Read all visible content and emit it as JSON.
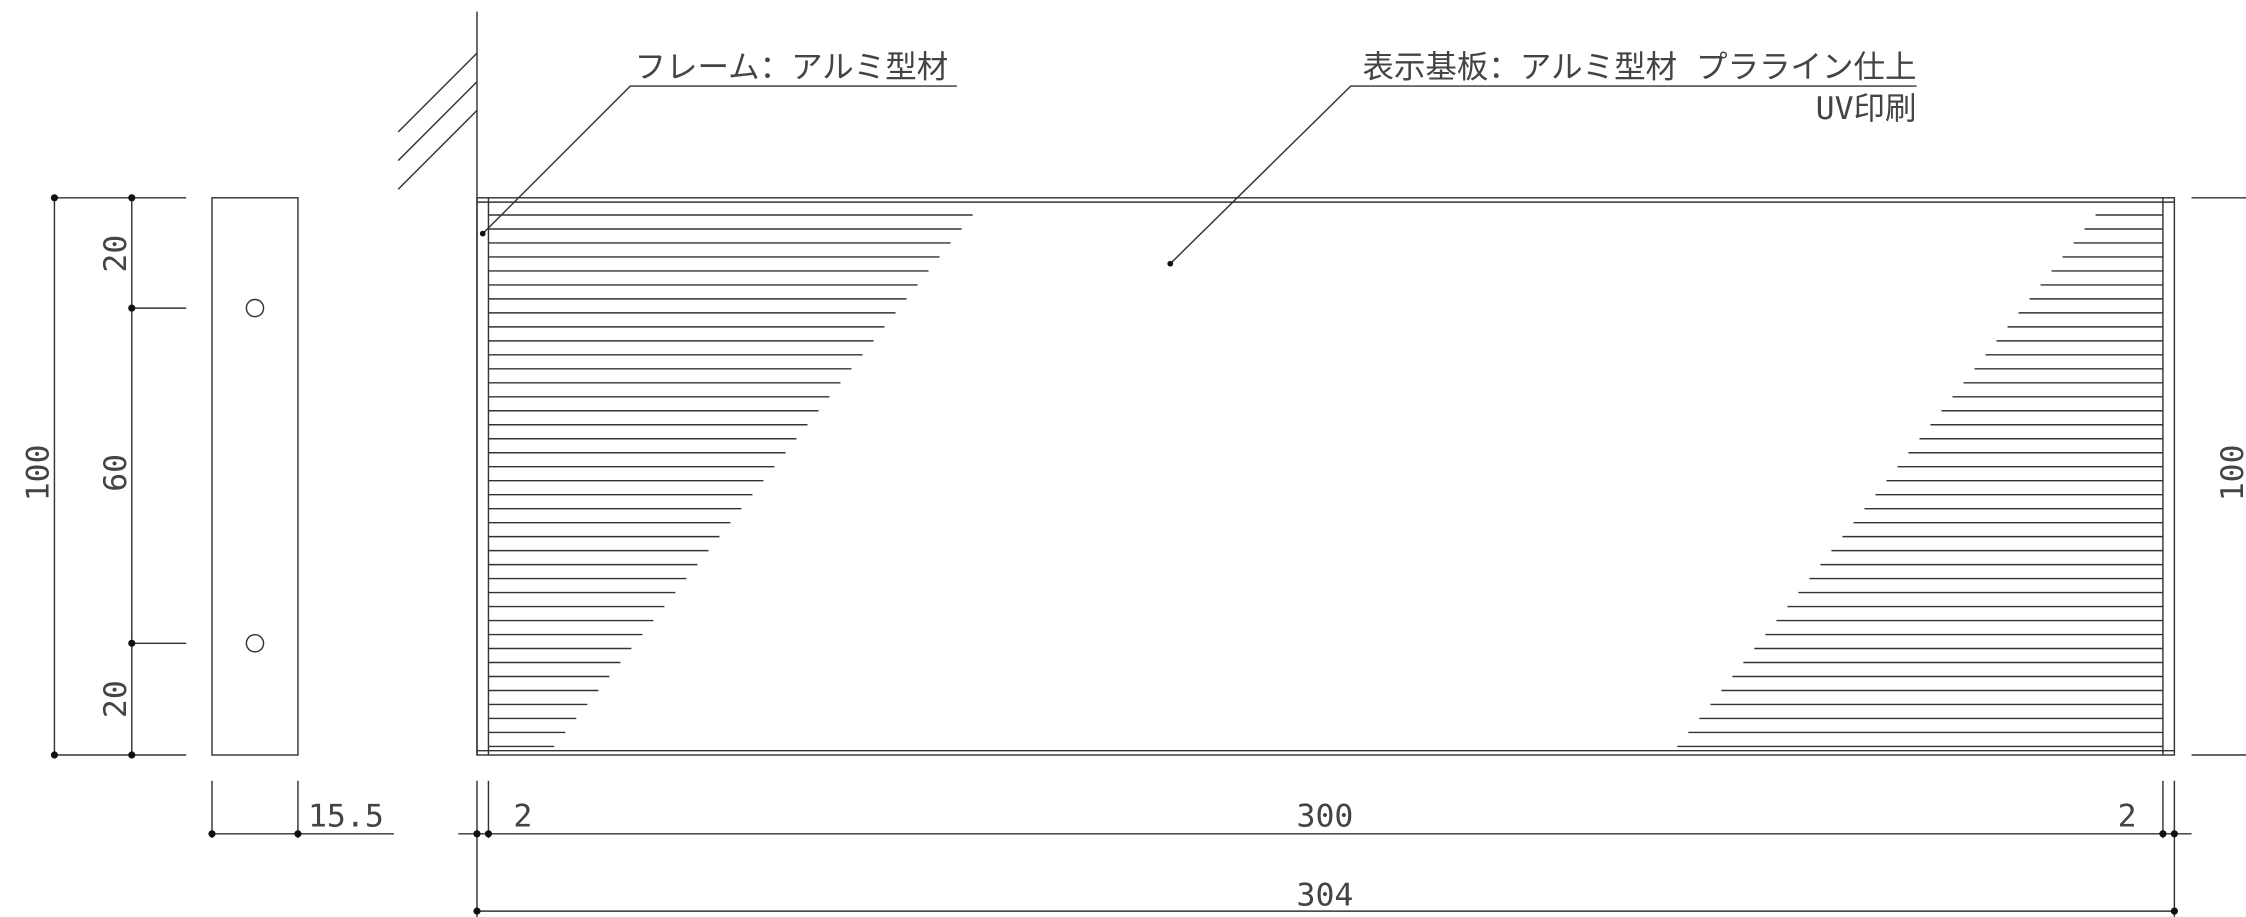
{
  "labels": {
    "frame": "フレーム：アルミ型材",
    "panel": "表示基板：アルミ型材 プラライン仕上",
    "print": "UV印刷"
  },
  "dimensions": {
    "side_top": "20",
    "side_middle": "60",
    "side_bottom": "20",
    "side_total": "100",
    "depth": "15.5",
    "frame_left": "2",
    "panel_width": "300",
    "frame_right": "2",
    "total_width": "304",
    "right_total": "100"
  }
}
